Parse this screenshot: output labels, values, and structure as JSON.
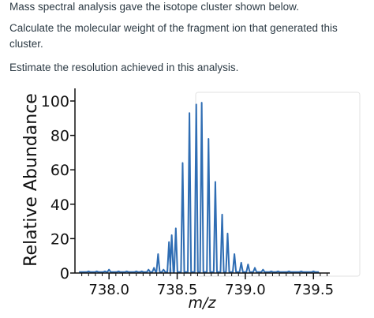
{
  "question": {
    "line1": "Mass spectral analysis gave the isotope cluster shown below.",
    "line2": "Calculate the molecular weight of the fragment ion that generated this cluster.",
    "line3": "Estimate the resolution achieved in this analysis."
  },
  "chart_data": {
    "type": "line",
    "xlabel": "m/z",
    "ylabel": "Relative Abundance",
    "xlim": [
      737.75,
      739.62
    ],
    "ylim": [
      0,
      100
    ],
    "xticks": [
      "738.0",
      "738.5",
      "739.0",
      "739.5"
    ],
    "xtick_values": [
      738.0,
      738.5,
      739.0,
      739.5
    ],
    "yticks": [
      "0",
      "20",
      "40",
      "60",
      "80",
      "100"
    ],
    "ytick_values": [
      0,
      20,
      40,
      60,
      80,
      100
    ],
    "series_color": "#2f6db3",
    "peaks": [
      {
        "x": 737.85,
        "y": 1
      },
      {
        "x": 737.91,
        "y": 1
      },
      {
        "x": 737.97,
        "y": 1
      },
      {
        "x": 738.0,
        "y": 2
      },
      {
        "x": 738.07,
        "y": 1
      },
      {
        "x": 738.13,
        "y": 1
      },
      {
        "x": 738.2,
        "y": 1
      },
      {
        "x": 738.24,
        "y": 1
      },
      {
        "x": 738.29,
        "y": 2
      },
      {
        "x": 738.33,
        "y": 3
      },
      {
        "x": 738.36,
        "y": 11
      },
      {
        "x": 738.4,
        "y": 2
      },
      {
        "x": 738.44,
        "y": 18
      },
      {
        "x": 738.46,
        "y": 22
      },
      {
        "x": 738.49,
        "y": 26
      },
      {
        "x": 738.54,
        "y": 64
      },
      {
        "x": 738.59,
        "y": 93
      },
      {
        "x": 738.64,
        "y": 98
      },
      {
        "x": 738.68,
        "y": 99
      },
      {
        "x": 738.73,
        "y": 78
      },
      {
        "x": 738.78,
        "y": 53
      },
      {
        "x": 738.83,
        "y": 34
      },
      {
        "x": 738.87,
        "y": 23
      },
      {
        "x": 738.92,
        "y": 11
      },
      {
        "x": 738.97,
        "y": 6
      },
      {
        "x": 739.02,
        "y": 5
      },
      {
        "x": 739.07,
        "y": 3
      },
      {
        "x": 739.13,
        "y": 2
      },
      {
        "x": 739.19,
        "y": 1
      },
      {
        "x": 739.24,
        "y": 1
      },
      {
        "x": 739.32,
        "y": 1
      },
      {
        "x": 739.41,
        "y": 1
      },
      {
        "x": 739.5,
        "y": 1
      }
    ]
  }
}
